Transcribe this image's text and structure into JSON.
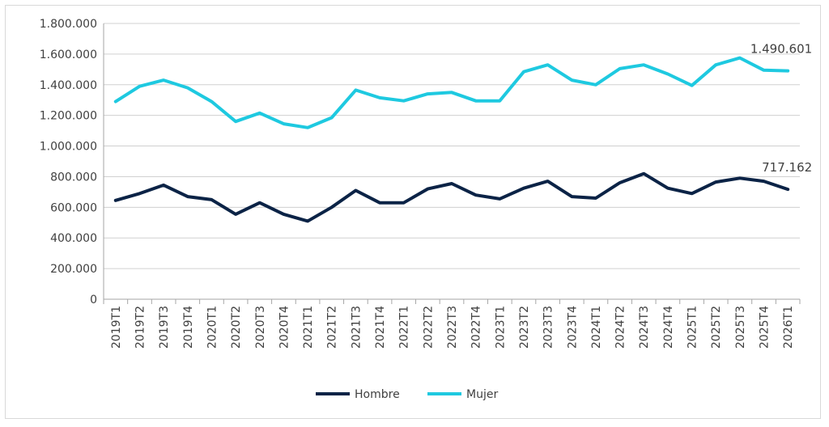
{
  "chart_data": {
    "type": "line",
    "title": "",
    "xlabel": "",
    "ylabel": "",
    "ylim": [
      0,
      1800000
    ],
    "yticks": [
      0,
      200000,
      400000,
      600000,
      800000,
      1000000,
      1200000,
      1400000,
      1600000,
      1800000
    ],
    "ytick_labels": [
      "0",
      "200.000",
      "400.000",
      "600.000",
      "800.000",
      "1.000.000",
      "1.200.000",
      "1.400.000",
      "1.600.000",
      "1.800.000"
    ],
    "grid": true,
    "legend": "bottom",
    "categories": [
      "2019T1",
      "2019T2",
      "2019T3",
      "2019T4",
      "2020T1",
      "2020T2",
      "2020T3",
      "2020T4",
      "2021T1",
      "2021T2",
      "2021T3",
      "2021T4",
      "2022T1",
      "2022T2",
      "2022T3",
      "2022T4",
      "2023T1",
      "2023T2",
      "2023T3",
      "2023T4",
      "2024T1",
      "2024T2",
      "2024T3",
      "2024T4",
      "2025T1",
      "2025T2",
      "2025T3",
      "2025T4",
      "2026T1"
    ],
    "series": [
      {
        "name": "Hombre",
        "color": "#0b2346",
        "values": [
          645000,
          690000,
          745000,
          670000,
          650000,
          555000,
          630000,
          555000,
          510000,
          600000,
          710000,
          630000,
          630000,
          720000,
          755000,
          680000,
          655000,
          725000,
          770000,
          670000,
          660000,
          760000,
          820000,
          725000,
          690000,
          765000,
          790000,
          770000,
          717162
        ]
      },
      {
        "name": "Mujer",
        "color": "#1ec9e0",
        "values": [
          1290000,
          1390000,
          1430000,
          1380000,
          1290000,
          1160000,
          1215000,
          1145000,
          1120000,
          1185000,
          1365000,
          1315000,
          1295000,
          1340000,
          1350000,
          1295000,
          1295000,
          1485000,
          1530000,
          1430000,
          1400000,
          1505000,
          1530000,
          1470000,
          1395000,
          1530000,
          1575000,
          1495000,
          1490601
        ]
      }
    ],
    "annotations": [
      {
        "series": "Mujer",
        "index": 28,
        "text": "1.490.601"
      },
      {
        "series": "Hombre",
        "index": 28,
        "text": "717.162"
      }
    ]
  }
}
